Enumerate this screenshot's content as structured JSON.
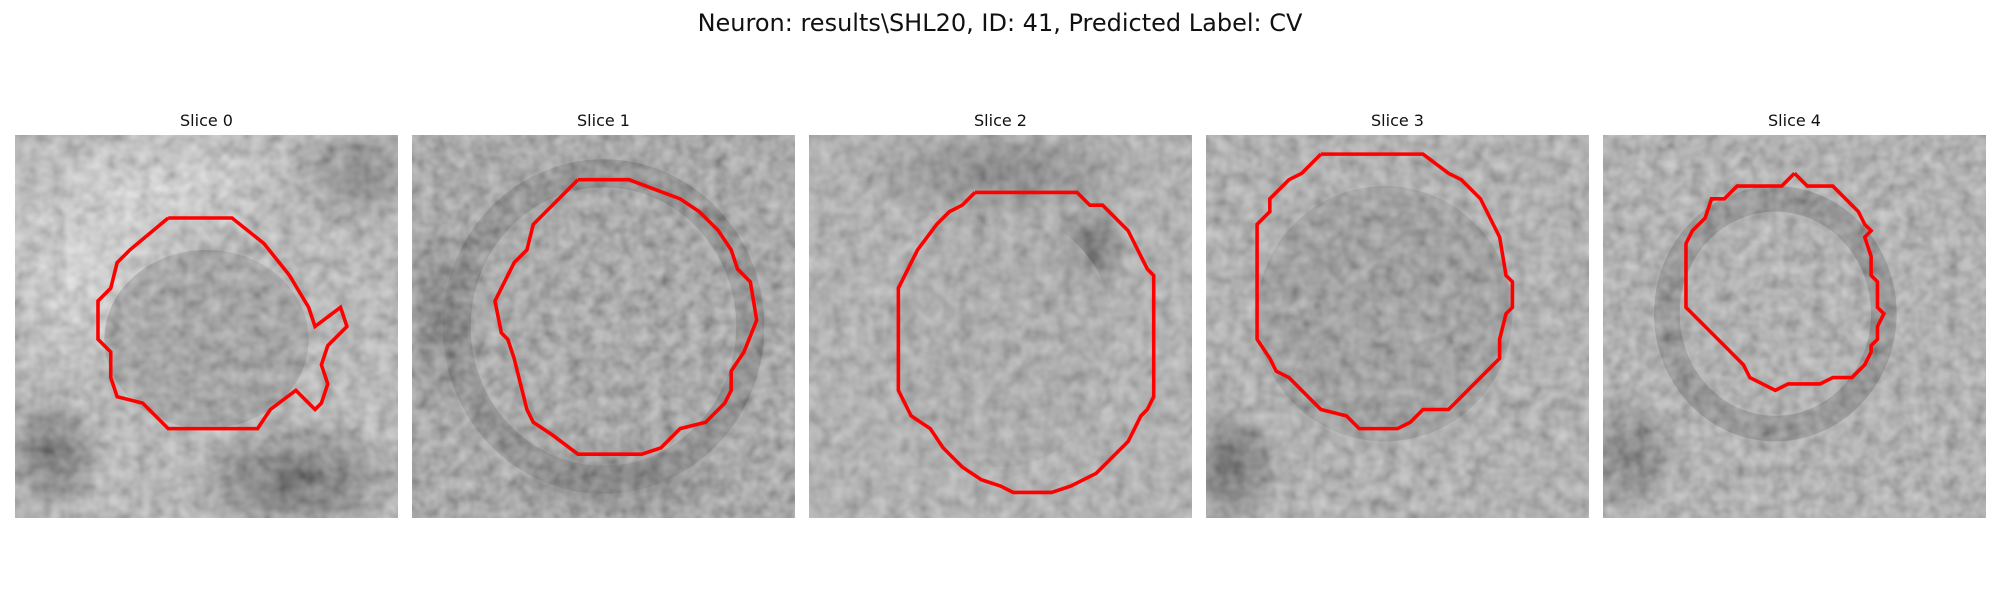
{
  "figure": {
    "title": "Neuron: results\\SHL20, ID: 41, Predicted Label: CV"
  },
  "panels": [
    {
      "title": "Slice 0"
    },
    {
      "title": "Slice 1"
    },
    {
      "title": "Slice 2"
    },
    {
      "title": "Slice 3"
    },
    {
      "title": "Slice 4"
    }
  ],
  "colors": {
    "contour": "#ff0000",
    "background": "#ffffff"
  }
}
